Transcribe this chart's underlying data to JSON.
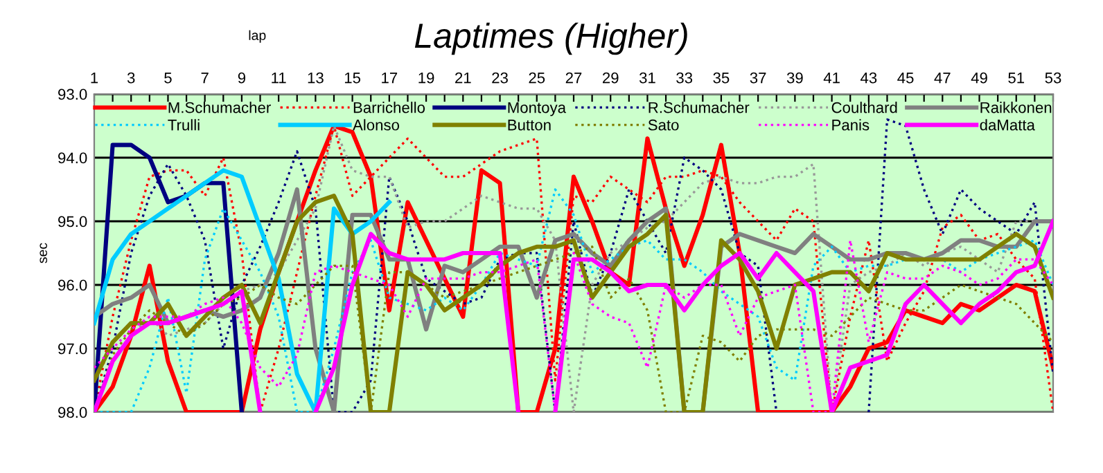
{
  "chart_data": {
    "type": "line",
    "title": "Laptimes (Higher)",
    "xlabel": "lap",
    "ylabel": "sec",
    "x": [
      1,
      2,
      3,
      4,
      5,
      6,
      7,
      8,
      9,
      10,
      11,
      12,
      13,
      14,
      15,
      16,
      17,
      18,
      19,
      20,
      21,
      22,
      23,
      24,
      25,
      26,
      27,
      28,
      29,
      30,
      31,
      32,
      33,
      34,
      35,
      36,
      37,
      38,
      39,
      40,
      41,
      42,
      43,
      44,
      45,
      46,
      47,
      48,
      49,
      50,
      51,
      52,
      53
    ],
    "xlim": [
      1,
      53
    ],
    "xticks": [
      1,
      {
        "value": 2,
        "label": null
      },
      3,
      {
        "value": 4,
        "label": null
      },
      5,
      {
        "value": 6,
        "label": null
      },
      7,
      {
        "value": 8,
        "label": null
      },
      9,
      {
        "value": 10,
        "label": null
      },
      11,
      {
        "value": 12,
        "label": null
      },
      13,
      {
        "value": 14,
        "label": null
      },
      15,
      {
        "value": 16,
        "label": null
      },
      17,
      {
        "value": 18,
        "label": null
      },
      19,
      {
        "value": 20,
        "label": null
      },
      21,
      {
        "value": 22,
        "label": null
      },
      23,
      {
        "value": 24,
        "label": null
      },
      25,
      {
        "value": 26,
        "label": null
      },
      27,
      {
        "value": 28,
        "label": null
      },
      29,
      {
        "value": 30,
        "label": null
      },
      31,
      {
        "value": 32,
        "label": null
      },
      33,
      {
        "value": 34,
        "label": null
      },
      35,
      {
        "value": 36,
        "label": null
      },
      37,
      {
        "value": 38,
        "label": null
      },
      39,
      {
        "value": 40,
        "label": null
      },
      41,
      {
        "value": 42,
        "label": null
      },
      43,
      {
        "value": 44,
        "label": null
      },
      45,
      {
        "value": 46,
        "label": null
      },
      47,
      {
        "value": 48,
        "label": null
      },
      49,
      {
        "value": 50,
        "label": null
      },
      51,
      {
        "value": 52,
        "label": null
      },
      53
    ],
    "ylim": [
      98,
      93
    ],
    "yticks": [
      {
        "value": 93,
        "label": "93.0"
      },
      {
        "value": 94,
        "label": "94.0"
      },
      {
        "value": 95,
        "label": "95.0"
      },
      {
        "value": 96,
        "label": "96.0"
      },
      {
        "value": 97,
        "label": "97.0"
      },
      {
        "value": 98,
        "label": "98.0"
      }
    ],
    "grid": "y",
    "legend": "top",
    "marker": "none",
    "series": [
      {
        "name": "M.Schumacher",
        "color": "#ff0000",
        "line_style": "solid",
        "values": [
          98,
          97.6,
          96.8,
          95.7,
          97.2,
          98,
          98,
          98,
          98,
          96.7,
          95.8,
          95.0,
          94.2,
          93.5,
          93.6,
          94.3,
          96.4,
          94.7,
          95.3,
          95.9,
          96.5,
          94.2,
          94.4,
          98,
          98,
          97.0,
          94.3,
          95.0,
          95.8,
          96.0,
          93.7,
          94.8,
          95.7,
          94.9,
          93.8,
          95.5,
          98,
          98,
          98,
          98,
          98,
          97.6,
          97.0,
          96.9,
          96.4,
          96.5,
          96.6,
          96.3,
          96.4,
          96.2,
          96.0,
          96.1,
          97.3
        ]
      },
      {
        "name": "Barrichello",
        "color": "#ff0000",
        "line_style": "dotted",
        "values": [
          98,
          96.5,
          95.3,
          94.3,
          94.2,
          94.2,
          94.6,
          94.0,
          95.5,
          98,
          97.0,
          95.8,
          94.6,
          93.5,
          94.6,
          94.3,
          94.0,
          93.7,
          94.0,
          94.3,
          94.3,
          94.1,
          93.9,
          93.8,
          93.7,
          97.5,
          94.6,
          94.7,
          94.3,
          94.5,
          94.7,
          94.3,
          94.3,
          94.2,
          94.3,
          94.7,
          95.0,
          95.3,
          94.8,
          95.0,
          98,
          96.5,
          95.3,
          97.2,
          96.6,
          96.1,
          95.1,
          94.9,
          95.3,
          95.2,
          95.6,
          95.9,
          98
        ]
      },
      {
        "name": "Montoya",
        "color": "#000080",
        "line_style": "solid",
        "values": [
          98,
          93.8,
          93.8,
          94.0,
          94.7,
          94.6,
          94.4,
          94.4,
          98,
          null,
          null,
          null,
          null,
          null,
          null,
          null,
          null,
          null,
          null,
          null,
          null,
          null,
          null,
          null,
          null,
          null,
          null,
          null,
          null,
          null,
          null,
          null,
          null,
          null,
          null,
          null,
          null,
          null,
          null,
          null,
          null,
          null,
          null,
          null,
          null,
          null,
          null,
          null,
          null,
          null,
          null,
          null,
          null
        ]
      },
      {
        "name": "R.Schumacher",
        "color": "#000080",
        "line_style": "dotted",
        "values": [
          98,
          97.0,
          95.5,
          94.6,
          94.1,
          94.6,
          95.3,
          97.0,
          96.0,
          95.4,
          94.7,
          93.9,
          94.8,
          98,
          98,
          97.5,
          94.3,
          95.0,
          95.9,
          96.1,
          96.3,
          96.2,
          95.6,
          95.5,
          95.5,
          98,
          95.0,
          96.2,
          95.5,
          94.5,
          95.0,
          95.5,
          94.0,
          94.2,
          94.5,
          95.5,
          95.7,
          98,
          null,
          null,
          null,
          null,
          98,
          93.4,
          93.5,
          94.5,
          95.2,
          94.5,
          94.8,
          95.0,
          95.2,
          94.7,
          97.4
        ]
      },
      {
        "name": "Coulthard",
        "color": "#999999",
        "line_style": "dotted",
        "values": [
          98,
          97.2,
          96.8,
          96.5,
          96.8,
          96.7,
          96.6,
          96.3,
          96.1,
          96.0,
          95.8,
          95.3,
          94.8,
          93.5,
          94.2,
          94.3,
          94.3,
          95.1,
          95.0,
          95.0,
          94.8,
          94.6,
          94.7,
          94.8,
          94.8,
          95.3,
          98,
          96.0,
          95.5,
          95.3,
          95.1,
          95.0,
          94.7,
          94.4,
          94.3,
          94.4,
          94.4,
          94.3,
          94.3,
          94.1,
          98,
          96.0,
          95.8,
          95.7,
          95.5,
          95.7,
          95.5,
          95.4,
          95.6,
          95.8,
          95.0,
          95.0,
          95.0
        ]
      },
      {
        "name": "Raikkonen",
        "color": "#808080",
        "line_style": "solid",
        "values": [
          96.5,
          96.3,
          96.2,
          96.0,
          96.6,
          96.5,
          96.4,
          96.5,
          96.4,
          96.2,
          95.5,
          94.5,
          97.0,
          98,
          94.9,
          94.9,
          95.6,
          95.6,
          96.7,
          95.7,
          95.8,
          95.6,
          95.4,
          95.4,
          96.2,
          95.3,
          95.2,
          95.5,
          95.7,
          95.3,
          95.0,
          94.8,
          98,
          98,
          95.4,
          95.2,
          95.3,
          95.4,
          95.5,
          95.2,
          95.4,
          95.6,
          95.6,
          95.5,
          95.5,
          95.6,
          95.5,
          95.3,
          95.3,
          95.4,
          95.4,
          95.0,
          95.0
        ]
      },
      {
        "name": "Trulli",
        "color": "#00ccff",
        "line_style": "dotted",
        "values": [
          98,
          98,
          98,
          97.3,
          96.2,
          97.7,
          95.6,
          94.8,
          95.3,
          95.8,
          96.5,
          98,
          98,
          97.0,
          95.8,
          95.3,
          96.2,
          96.3,
          96.4,
          96.2,
          96.4,
          96.0,
          95.5,
          95.6,
          95.7,
          94.5,
          94.9,
          95.8,
          95.6,
          95.4,
          95.3,
          95.6,
          95.6,
          95.8,
          96.1,
          96.3,
          96.5,
          97.3,
          97.5,
          95.7,
          95.4,
          95.8,
          95.7,
          95.7,
          95.6,
          95.6,
          95.6,
          95.8,
          95.6,
          95.5,
          95.4,
          95.3,
          96.0
        ]
      },
      {
        "name": "Alonso",
        "color": "#00ccff",
        "line_style": "solid",
        "values": [
          96.6,
          95.6,
          95.2,
          95.0,
          94.8,
          94.6,
          94.4,
          94.2,
          94.3,
          95.1,
          95.9,
          97.4,
          98,
          94.8,
          95.2,
          95.0,
          94.7,
          null,
          null,
          null,
          null,
          null,
          null,
          null,
          null,
          null,
          null,
          null,
          null,
          null,
          null,
          null,
          null,
          null,
          null,
          null,
          null,
          null,
          null,
          null,
          null,
          null,
          null,
          null,
          null,
          null,
          null,
          null,
          null,
          null,
          null,
          null,
          null
        ]
      },
      {
        "name": "Button",
        "color": "#808000",
        "line_style": "solid",
        "values": [
          97.5,
          96.9,
          96.6,
          96.6,
          96.3,
          96.8,
          96.5,
          96.2,
          96.0,
          96.6,
          95.8,
          95.0,
          94.7,
          94.6,
          95.2,
          98,
          98,
          95.8,
          96.0,
          96.4,
          96.2,
          96.0,
          95.7,
          95.5,
          95.4,
          95.4,
          95.3,
          96.2,
          95.8,
          95.4,
          95.2,
          94.9,
          98,
          98,
          95.3,
          95.6,
          96.1,
          97.0,
          96.0,
          95.9,
          95.8,
          95.8,
          96.1,
          95.5,
          95.6,
          95.6,
          95.6,
          95.6,
          95.6,
          95.4,
          95.2,
          95.4,
          96.2
        ]
      },
      {
        "name": "Sato",
        "color": "#808000",
        "line_style": "dotted",
        "values": [
          98,
          97.1,
          96.7,
          96.4,
          96.6,
          96.8,
          96.6,
          96.3,
          96.2,
          96.0,
          96.2,
          96.3,
          96.0,
          95.7,
          95.7,
          98,
          95.8,
          95.8,
          96.0,
          96.2,
          96.1,
          96.0,
          95.9,
          95.8,
          95.7,
          95.6,
          95.5,
          95.4,
          96.2,
          95.9,
          96.4,
          98,
          98,
          96.8,
          96.9,
          97.2,
          96.8,
          96.7,
          96.7,
          96.7,
          96.8,
          96.5,
          96.2,
          96.3,
          96.4,
          96.4,
          96.2,
          96.0,
          96.1,
          96.2,
          96.3,
          96.6,
          96.9
        ]
      },
      {
        "name": "Panis",
        "color": "#ff00ff",
        "line_style": "dotted",
        "values": [
          97.3,
          97.0,
          96.7,
          96.5,
          96.5,
          96.5,
          96.3,
          96.2,
          96.6,
          97.3,
          97.6,
          97.1,
          95.8,
          95.7,
          95.8,
          95.9,
          96.0,
          96.5,
          95.9,
          95.9,
          95.9,
          95.8,
          95.8,
          95.7,
          95.6,
          98,
          95.5,
          96.3,
          96.5,
          96.6,
          97.3,
          96.0,
          96.2,
          96.0,
          96.0,
          96.8,
          96.2,
          96.1,
          96.0,
          98,
          98,
          95.3,
          96.9,
          95.8,
          95.9,
          95.9,
          95.7,
          95.8,
          96.0,
          95.9,
          95.6,
          95.6,
          96.0
        ]
      },
      {
        "name": "daMatta",
        "color": "#ff00ff",
        "line_style": "solid",
        "values": [
          98,
          97.2,
          96.8,
          96.6,
          96.6,
          96.5,
          96.4,
          96.3,
          96.1,
          98,
          null,
          null,
          98,
          97.3,
          96.0,
          95.2,
          95.5,
          95.6,
          95.6,
          95.6,
          95.5,
          95.5,
          95.5,
          98,
          null,
          98,
          95.6,
          95.6,
          95.8,
          96.1,
          96.0,
          96.0,
          96.4,
          96.0,
          95.7,
          95.5,
          95.9,
          95.5,
          95.8,
          96.1,
          98,
          97.3,
          97.2,
          97.1,
          96.3,
          96.0,
          96.3,
          96.6,
          96.3,
          96.1,
          95.8,
          95.7,
          95.0
        ]
      }
    ]
  }
}
